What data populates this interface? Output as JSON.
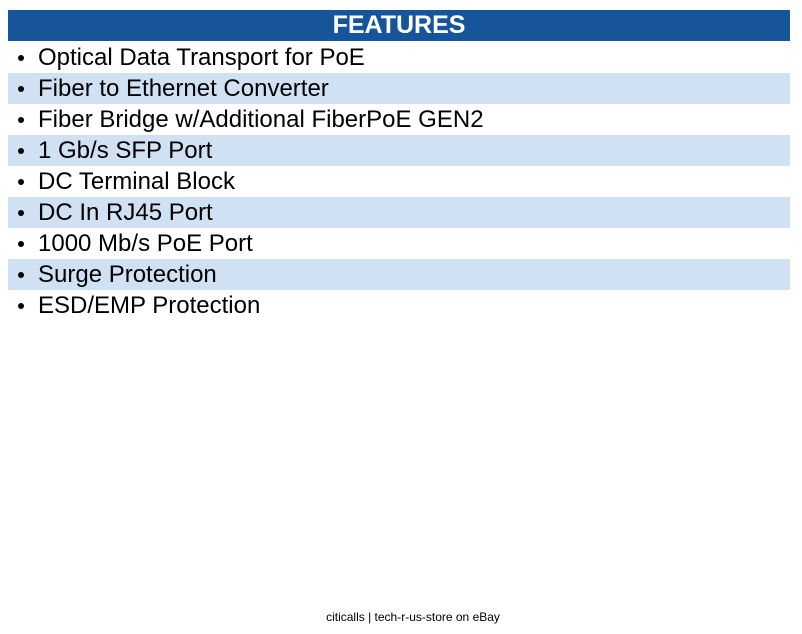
{
  "header": {
    "title": "FEATURES"
  },
  "features": [
    "Optical Data Transport for PoE",
    "Fiber to Ethernet Converter",
    "Fiber Bridge w/Additional FiberPoE GEN2",
    "1 Gb/s SFP Port",
    "DC Terminal Block",
    "DC In RJ45 Port",
    "1000 Mb/s PoE Port",
    "Surge Protection",
    "ESD/EMP Protection"
  ],
  "footer": {
    "text": "citicalls | tech-r-us-store on eBay"
  }
}
